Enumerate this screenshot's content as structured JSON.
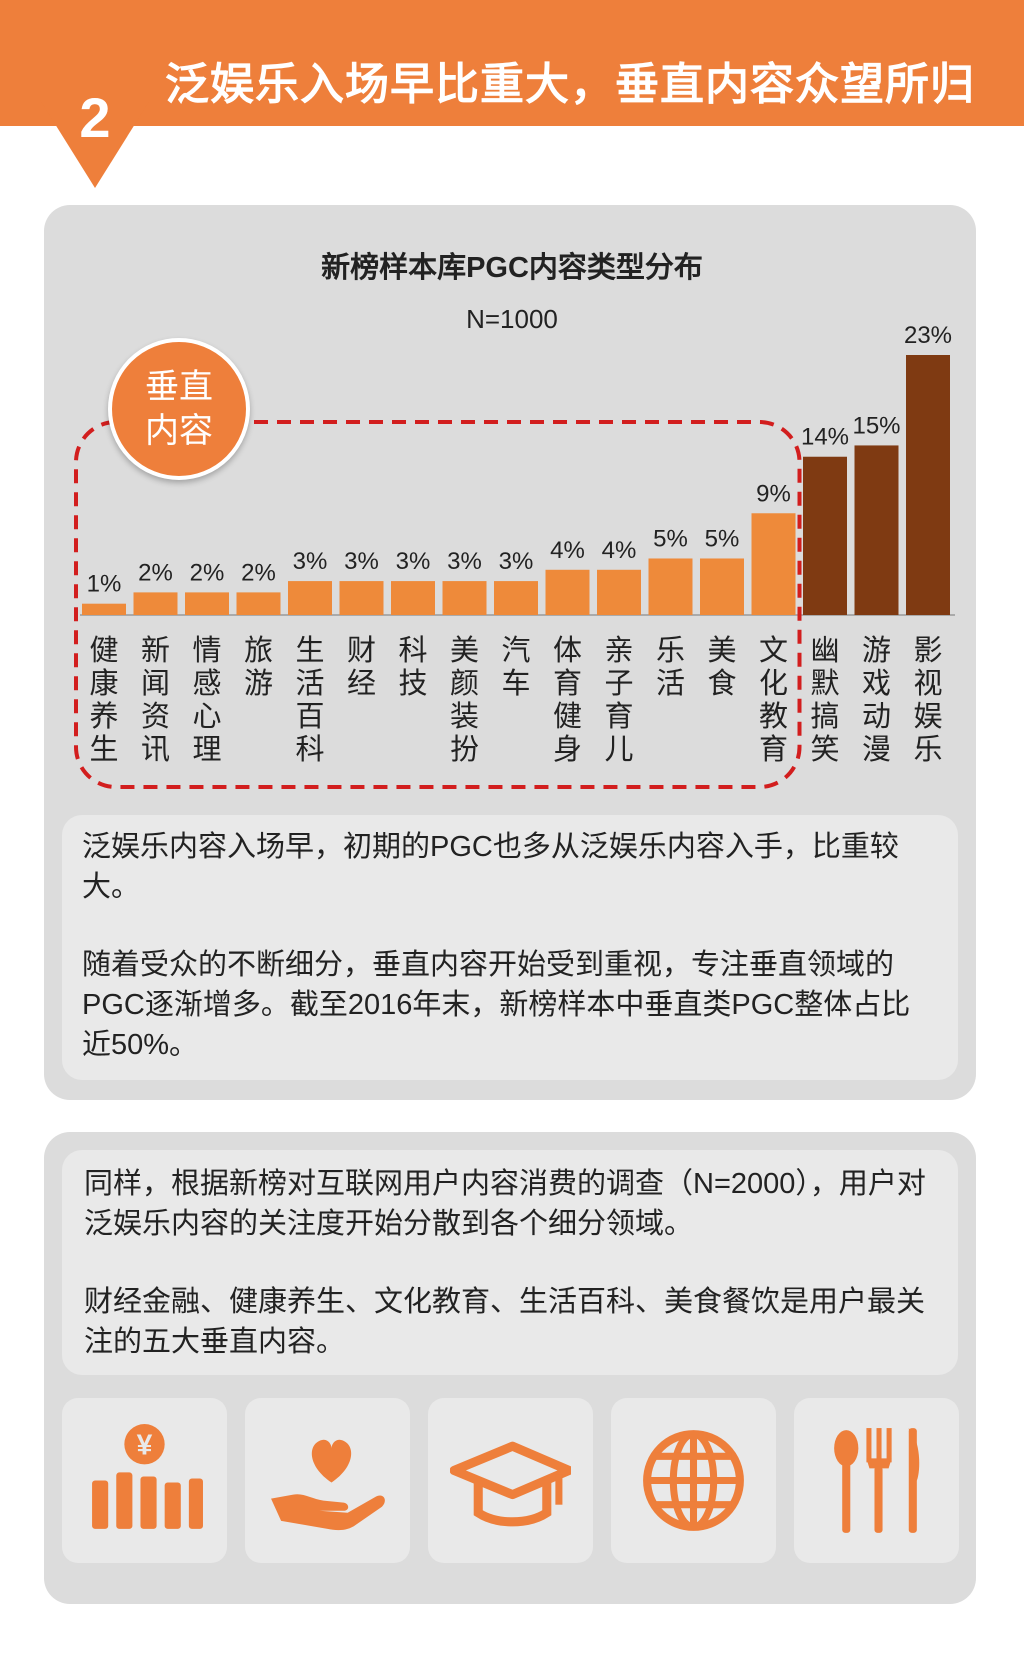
{
  "header": {
    "number": "2",
    "title": "泛娱乐入场早比重大，垂直内容众望所归"
  },
  "colors": {
    "accent": "#ee7f3b",
    "bar_vertical": "#ee8a3a",
    "bar_entertainment": "#7f3a12",
    "panel_bg": "#dcdcdc",
    "dashed_box": "#d21e1e"
  },
  "badge_circle": {
    "label": "垂直内容"
  },
  "chart_data": {
    "type": "bar",
    "title": "新榜样本库PGC内容类型分布",
    "subtitle": "N=1000",
    "categories": [
      "健康养生",
      "新闻资讯",
      "情感心理",
      "旅游",
      "生活百科",
      "财经",
      "科技",
      "美颜装扮",
      "汽车",
      "体育健身",
      "亲子育儿",
      "乐活",
      "美食",
      "文化教育",
      "幽默搞笑",
      "游戏动漫",
      "影视娱乐"
    ],
    "values": [
      1,
      2,
      2,
      2,
      3,
      3,
      3,
      3,
      3,
      4,
      4,
      5,
      5,
      9,
      14,
      15,
      23
    ],
    "value_labels": [
      "1%",
      "2%",
      "2%",
      "2%",
      "3%",
      "3%",
      "3%",
      "3%",
      "3%",
      "4%",
      "4%",
      "5%",
      "5%",
      "9%",
      "14%",
      "15%",
      "23%"
    ],
    "groups": {
      "vertical": [
        0,
        13
      ],
      "entertainment": [
        14,
        16
      ]
    },
    "ylim": [
      0,
      25
    ],
    "xlabel": "",
    "ylabel": "",
    "grid": false
  },
  "text_block_1": [
    "泛娱乐内容入场早，初期的PGC也多从泛娱乐内容入手，比重较大。",
    "随着受众的不断细分，垂直内容开始受到重视，专注垂直领域的PGC逐渐增多。截至2016年末，新榜样本中垂直类PGC整体占比近50%。"
  ],
  "text_block_2": [
    "同样，根据新榜对互联网用户内容消费的调查（N=2000），用户对泛娱乐内容的关注度开始分散到各个细分领域。",
    "财经金融、健康养生、文化教育、生活百科、美食餐饮是用户最关注的五大垂直内容。"
  ],
  "tiles": [
    {
      "icon": "finance-chart-yen-icon",
      "symbol": "¥"
    },
    {
      "icon": "heart-hand-icon"
    },
    {
      "icon": "graduation-cap-icon"
    },
    {
      "icon": "globe-icon"
    },
    {
      "icon": "cutlery-icon"
    }
  ]
}
